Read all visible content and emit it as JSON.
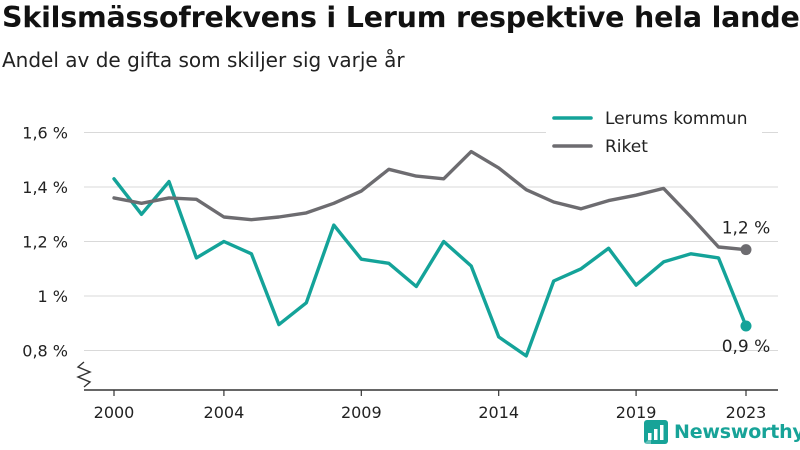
{
  "header": {
    "title": "Skilsmässofrekvens i Lerum respektive hela landet",
    "subtitle": "Andel av de gifta som skiljer sig varje år"
  },
  "brand": {
    "name": "Newsworthy",
    "icon": "bar-chart-logo-icon"
  },
  "colors": {
    "lerum": "#14a399",
    "riket": "#6d6c70",
    "grid": "#d9d9d9",
    "axis": "#333333",
    "brand": "#17a398"
  },
  "chart_data": {
    "type": "line",
    "title": "Skilsmässofrekvens i Lerum respektive hela landet",
    "subtitle": "Andel av de gifta som skiljer sig varje år",
    "x": [
      2000,
      2001,
      2002,
      2003,
      2004,
      2005,
      2006,
      2007,
      2008,
      2009,
      2010,
      2011,
      2012,
      2013,
      2014,
      2015,
      2016,
      2017,
      2018,
      2019,
      2020,
      2021,
      2022,
      2023
    ],
    "x_ticks": [
      2000,
      2004,
      2009,
      2014,
      2019,
      2023
    ],
    "x_tick_labels": [
      "2000",
      "2004",
      "2009",
      "2014",
      "2019",
      "2023"
    ],
    "y_ticks": [
      0.8,
      1.0,
      1.2,
      1.4,
      1.6
    ],
    "y_tick_labels": [
      "0,8 %",
      "1 %",
      "1,2 %",
      "1,4 %",
      "1,6 %"
    ],
    "ylim": [
      0.72,
      1.65
    ],
    "y_axis_break": true,
    "grid": "horizontal",
    "legend_position": "top-right",
    "series": [
      {
        "name": "Lerums kommun",
        "color": "#14a399",
        "values": [
          1.43,
          1.3,
          1.42,
          1.14,
          1.2,
          1.155,
          0.895,
          0.975,
          1.26,
          1.135,
          1.12,
          1.035,
          1.2,
          1.11,
          0.85,
          0.78,
          1.055,
          1.1,
          1.175,
          1.04,
          1.125,
          1.155,
          1.14,
          0.89
        ],
        "end_label": "0,9 %"
      },
      {
        "name": "Riket",
        "color": "#6d6c70",
        "values": [
          1.36,
          1.34,
          1.36,
          1.355,
          1.29,
          1.28,
          1.29,
          1.305,
          1.34,
          1.385,
          1.465,
          1.44,
          1.43,
          1.53,
          1.47,
          1.39,
          1.345,
          1.32,
          1.35,
          1.37,
          1.395,
          1.29,
          1.18,
          1.17
        ],
        "end_label": "1,2 %"
      }
    ]
  }
}
